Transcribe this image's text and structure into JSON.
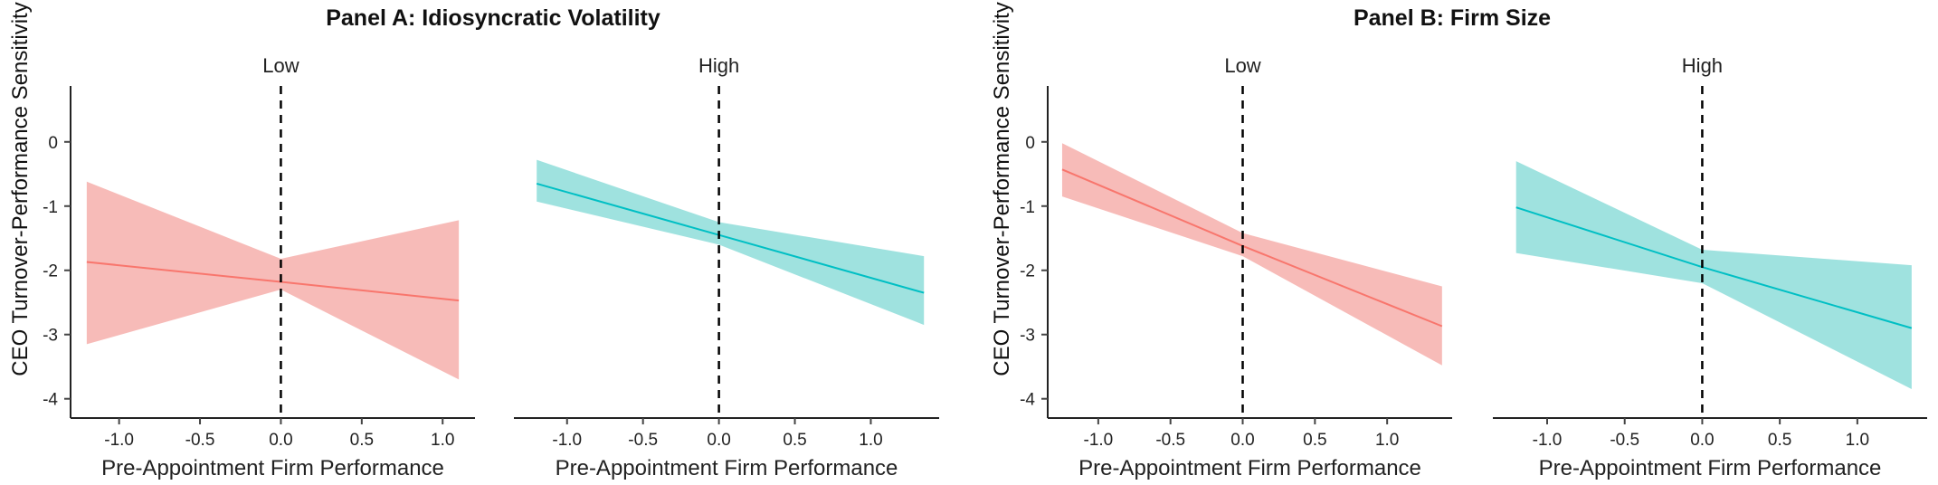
{
  "chart_data": [
    {
      "type": "line",
      "title": "Panel A: Idiosyncratic Volatility",
      "ylabel": "CEO Turnover-Performance Sensitivity",
      "ylim": [
        -4.3,
        0.8
      ],
      "yticks": [
        0,
        -1,
        -2,
        -3,
        -4
      ],
      "facets": [
        {
          "label": "Low",
          "color": "#f8766d",
          "fill": "#f4a4a0",
          "xlabel": "Pre-Appointment Firm Performance",
          "xlim": [
            -1.3,
            1.2
          ],
          "xticks": [
            -1.0,
            -0.5,
            0.0,
            0.5,
            1.0
          ],
          "x": [
            -1.2,
            0.0,
            1.1
          ],
          "fit": [
            -1.87,
            -2.18,
            -2.47
          ],
          "lower": [
            -3.15,
            -2.3,
            -3.7
          ],
          "upper": [
            -0.62,
            -1.82,
            -1.22
          ],
          "vline": 0.0
        },
        {
          "label": "High",
          "color": "#00bfc4",
          "fill": "#7fd8d4",
          "xlabel": "Pre-Appointment Firm Performance",
          "xlim": [
            -1.35,
            1.45
          ],
          "xticks": [
            -1.0,
            -0.5,
            0.0,
            0.5,
            1.0
          ],
          "x": [
            -1.2,
            0.0,
            1.35
          ],
          "fit": [
            -0.65,
            -1.45,
            -2.35
          ],
          "lower": [
            -0.93,
            -1.6,
            -2.85
          ],
          "upper": [
            -0.28,
            -1.25,
            -1.78
          ],
          "vline": 0.0
        }
      ]
    },
    {
      "type": "line",
      "title": "Panel B: Firm Size",
      "ylabel": "CEO Turnover-Performance Sensitivity",
      "ylim": [
        -4.3,
        0.8
      ],
      "yticks": [
        0,
        -1,
        -2,
        -3,
        -4
      ],
      "facets": [
        {
          "label": "Low",
          "color": "#f8766d",
          "fill": "#f4a4a0",
          "xlabel": "Pre-Appointment Firm Performance",
          "xlim": [
            -1.35,
            1.45
          ],
          "xticks": [
            -1.0,
            -0.5,
            0.0,
            0.5,
            1.0
          ],
          "x": [
            -1.25,
            0.0,
            1.38
          ],
          "fit": [
            -0.43,
            -1.62,
            -2.87
          ],
          "lower": [
            -0.85,
            -1.78,
            -3.48
          ],
          "upper": [
            -0.02,
            -1.42,
            -2.25
          ],
          "vline": 0.0
        },
        {
          "label": "High",
          "color": "#00bfc4",
          "fill": "#7fd8d4",
          "xlabel": "Pre-Appointment Firm Performance",
          "xlim": [
            -1.35,
            1.45
          ],
          "xticks": [
            -1.0,
            -0.5,
            0.0,
            0.5,
            1.0
          ],
          "x": [
            -1.2,
            0.0,
            1.35
          ],
          "fit": [
            -1.02,
            -1.95,
            -2.9
          ],
          "lower": [
            -1.73,
            -2.2,
            -3.85
          ],
          "upper": [
            -0.3,
            -1.68,
            -1.92
          ],
          "vline": 0.0
        }
      ]
    }
  ]
}
